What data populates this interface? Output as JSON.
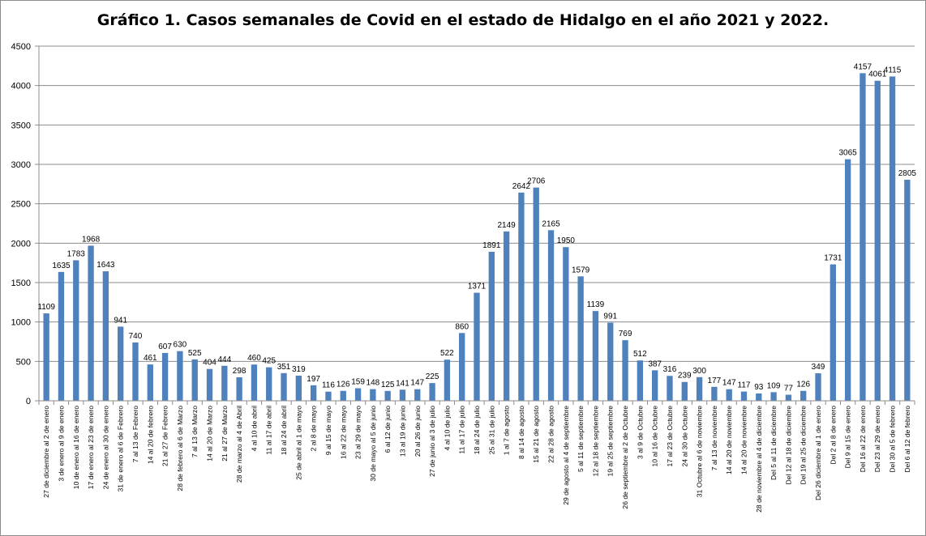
{
  "chart_data": {
    "type": "bar",
    "title": "Gráfico 1. Casos semanales de Covid en el estado de Hidalgo en el año 2021 y 2022.",
    "xlabel": "",
    "ylabel": "",
    "ylim": [
      0,
      4500
    ],
    "yticks": [
      0,
      500,
      1000,
      1500,
      2000,
      2500,
      3000,
      3500,
      4000,
      4500
    ],
    "grid": true,
    "legend": "none",
    "bar_color": "#4f81bd",
    "categories": [
      "27 de diciembre al 2 de enero",
      "3 de enero al 9 de enero",
      "10 de enero al 16 de enero",
      "17 de enero al 23 de enero",
      "24 de enero al 30 de enero",
      "31 de enero al 6 de Febrero",
      "7 al 13 de Febrero",
      "14 al 20 de febrero",
      "21 al 27 de Febrero",
      "28 de febrero al 6 de Marzo",
      "7 al 13 de Marzo",
      "14 al 20 de Marzo",
      "21 al 27 de Marzo",
      "28 de marzo al 4 de Abril",
      "4 al 10 de abril",
      "11 al 17 de abril",
      "18 al 24 de abril",
      "25 de abril al 1 de mayo",
      "2 al 8 de mayo",
      "9 al 15 de mayo",
      "16 al 22 de mayo",
      "23 al 29 de mayo",
      "30 de mayo al 5 de junio",
      "6 al 12 de junio",
      "13 al 19 de junio",
      "20 al 26 de junio",
      "27 de junio al 3 de julio",
      "4 al 10 de julio",
      "11 al 17 de julio",
      "18 al 24 de julio",
      "25 al 31 de julio",
      "1 al 7 de agosto",
      "8 al 14 de agosto",
      "15 al 21 de agosto",
      "22 al 28 de agosto",
      "29 de agosto al 4 de septiembre",
      "5 al 11 de septiembre",
      "12 al 18 de septiembre",
      "19 al 25 de septiembre",
      "26 de septiembre al 2 de Octubre",
      "3 al 9 de Octubre",
      "10 al 16 de Octubre",
      "17 al 23 de Octubre",
      "24 al 30 de Octubre",
      "31 Octubre al 6 de noviembre",
      "7 al 13 de noviembre",
      "14 al 20 de noviembre",
      "14 al 20 de noviembre",
      "28 de noviembre al 4 de diciembre",
      "Del 5 al 11 de diciembre",
      "Del 12 al 18 de diciembre",
      "Del 19 al 25 de diciembre",
      "Del 26 diciembre al 1 de enero",
      "Del 2 al 8 de enero",
      "Del 9 al 15 de enero",
      "Del 16 al 22 de enero",
      "Del 23 al 29 de enero",
      "Del 30 al 5 de febrero",
      "Del 6 al 12 de febrero"
    ],
    "values": [
      1109,
      1635,
      1783,
      1968,
      1643,
      941,
      740,
      461,
      607,
      630,
      525,
      404,
      444,
      298,
      460,
      425,
      351,
      319,
      197,
      116,
      126,
      159,
      148,
      125,
      141,
      147,
      225,
      522,
      860,
      1371,
      1891,
      2149,
      2642,
      2706,
      2165,
      1950,
      1579,
      1139,
      991,
      769,
      512,
      387,
      316,
      239,
      300,
      177,
      147,
      117,
      93,
      109,
      77,
      126,
      349,
      1731,
      3065,
      4157,
      4061,
      4115,
      2805
    ]
  }
}
